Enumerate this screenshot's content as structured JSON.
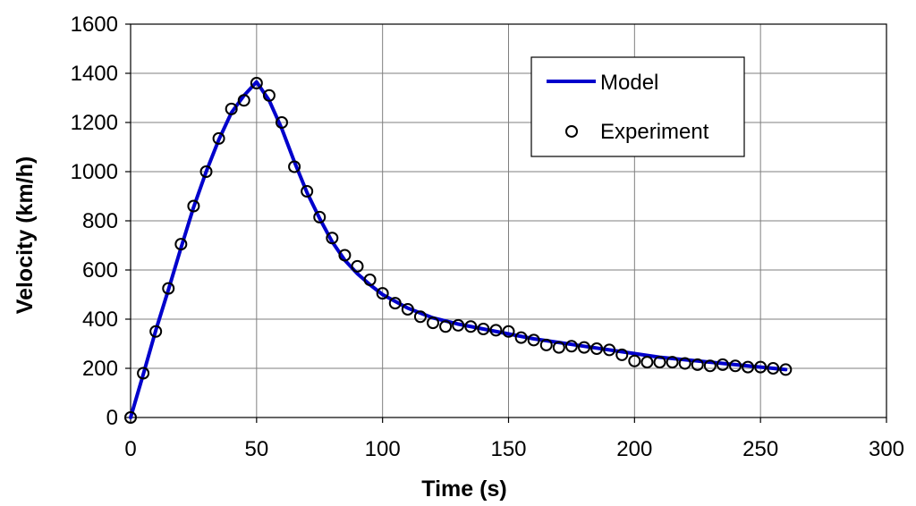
{
  "chart_data": {
    "type": "scatter",
    "title": "",
    "xlabel": "Time (s)",
    "ylabel": "Velocity (km/h)",
    "xlim": [
      0,
      300
    ],
    "ylim": [
      0,
      1600
    ],
    "x_ticks": [
      0,
      50,
      100,
      150,
      200,
      250,
      300
    ],
    "y_ticks": [
      0,
      200,
      400,
      600,
      800,
      1000,
      1200,
      1400,
      1600
    ],
    "x_tick_labels": [
      "0",
      "50",
      "100",
      "150",
      "200",
      "250",
      "300"
    ],
    "y_tick_labels": [
      "0",
      "200",
      "400",
      "600",
      "800",
      "1000",
      "1200",
      "1400",
      "1600"
    ],
    "grid": true,
    "legend_position": "top-right",
    "series": [
      {
        "name": "Model",
        "kind": "line",
        "color": "#0000CC",
        "x": [
          0,
          5,
          10,
          15,
          20,
          25,
          30,
          35,
          40,
          45,
          50,
          55,
          60,
          65,
          70,
          75,
          80,
          85,
          90,
          95,
          100,
          110,
          120,
          130,
          140,
          150,
          160,
          170,
          180,
          190,
          200,
          210,
          220,
          230,
          240,
          250,
          260
        ],
        "y": [
          0,
          175,
          355,
          520,
          690,
          855,
          1000,
          1130,
          1240,
          1310,
          1365,
          1290,
          1175,
          1040,
          915,
          810,
          715,
          640,
          585,
          540,
          500,
          445,
          405,
          380,
          360,
          340,
          320,
          305,
          290,
          275,
          260,
          245,
          235,
          225,
          215,
          205,
          195
        ]
      },
      {
        "name": "Experiment",
        "kind": "scatter",
        "color": "#000000",
        "x": [
          0,
          5,
          10,
          15,
          20,
          25,
          30,
          35,
          40,
          45,
          50,
          55,
          60,
          65,
          70,
          75,
          80,
          85,
          90,
          95,
          100,
          105,
          110,
          115,
          120,
          125,
          130,
          135,
          140,
          145,
          150,
          155,
          160,
          165,
          170,
          175,
          180,
          185,
          190,
          195,
          200,
          205,
          210,
          215,
          220,
          225,
          230,
          235,
          240,
          245,
          250,
          255,
          260
        ],
        "y": [
          0,
          180,
          350,
          525,
          705,
          860,
          1000,
          1135,
          1255,
          1290,
          1360,
          1310,
          1200,
          1020,
          920,
          815,
          730,
          660,
          615,
          560,
          505,
          465,
          440,
          410,
          385,
          370,
          375,
          370,
          360,
          355,
          350,
          325,
          315,
          295,
          285,
          290,
          285,
          280,
          275,
          255,
          230,
          225,
          225,
          225,
          220,
          215,
          210,
          215,
          210,
          205,
          205,
          200,
          195
        ]
      }
    ]
  }
}
